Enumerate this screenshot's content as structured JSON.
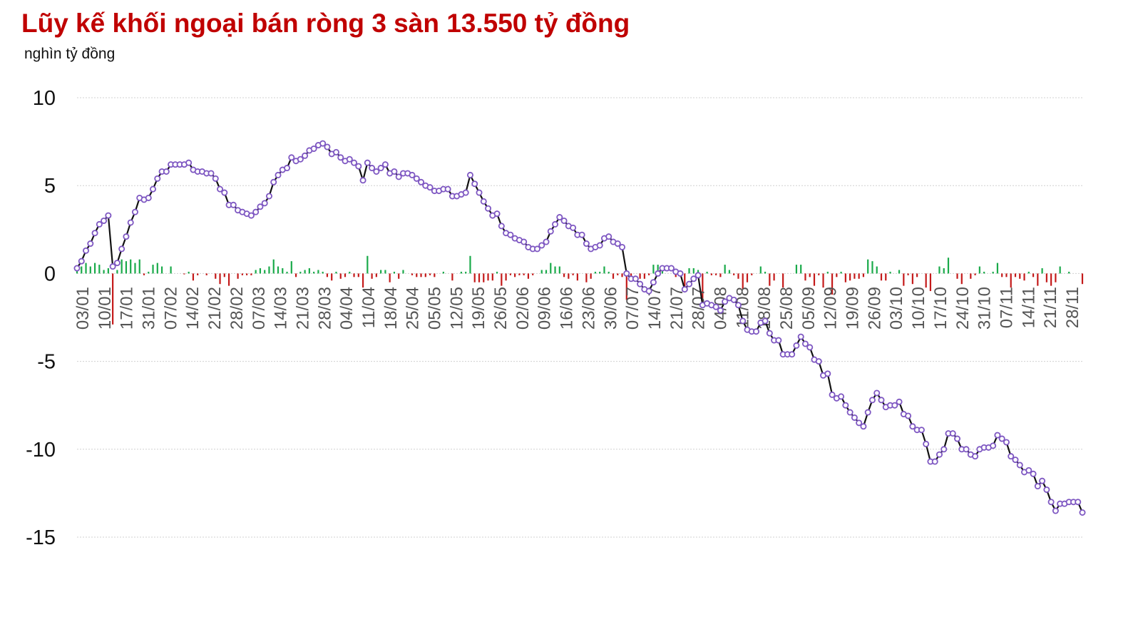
{
  "chart_data": {
    "type": "line",
    "title": "Lũy kế khối ngoại bán ròng 3 sàn 13.550 tỷ đồng",
    "ylabel": "nghìn tỷ đồng",
    "xlabel": "",
    "ylim": [
      -15,
      10
    ],
    "yticks": [
      10,
      5,
      0,
      -5,
      -10,
      -15
    ],
    "grid": true,
    "legend": "none",
    "colors": {
      "title": "#c00000",
      "line": "#111111",
      "marker_fill": "#ffffff",
      "marker_stroke": "#7e57c2",
      "bar_positive": "#1aaa4a",
      "bar_negative": "#c41a1a",
      "grid": "#d0d0d0"
    },
    "x_tick_labels": [
      "03/01",
      "10/01",
      "17/01",
      "31/01",
      "07/02",
      "14/02",
      "21/02",
      "28/02",
      "07/03",
      "14/03",
      "21/03",
      "28/03",
      "04/04",
      "11/04",
      "18/04",
      "25/04",
      "05/05",
      "12/05",
      "19/05",
      "26/05",
      "02/06",
      "09/06",
      "16/06",
      "23/06",
      "30/06",
      "07/07",
      "14/07",
      "21/07",
      "28/07",
      "04/08",
      "11/08",
      "18/08",
      "25/08",
      "05/09",
      "12/09",
      "19/09",
      "26/09",
      "03/10",
      "10/10",
      "17/10",
      "24/10",
      "31/10",
      "07/11",
      "14/11",
      "21/11",
      "28/11"
    ],
    "series": [
      {
        "kind": "line",
        "values": [
          0.3,
          0.7,
          1.3,
          1.7,
          2.3,
          2.8,
          3.0,
          3.3,
          0.4,
          0.6,
          1.4,
          2.1,
          2.9,
          3.5,
          4.3,
          4.2,
          4.3,
          4.8,
          5.4,
          5.8,
          5.8,
          6.2,
          6.2,
          6.2,
          6.2,
          6.3,
          5.9,
          5.8,
          5.8,
          5.7,
          5.7,
          5.4,
          4.8,
          4.6,
          3.9,
          3.9,
          3.6,
          3.5,
          3.4,
          3.3,
          3.5,
          3.8,
          4.0,
          4.4,
          5.2,
          5.6,
          5.9,
          6.0,
          6.6,
          6.4,
          6.5,
          6.7,
          7.0,
          7.1,
          7.3,
          7.4,
          7.2,
          6.8,
          6.9,
          6.6,
          6.4,
          6.5,
          6.3,
          6.1,
          5.3,
          6.3,
          6.0,
          5.8,
          6.0,
          6.2,
          5.7,
          5.8,
          5.5,
          5.7,
          5.7,
          5.6,
          5.4,
          5.2,
          5.0,
          4.9,
          4.7,
          4.7,
          4.8,
          4.8,
          4.4,
          4.4,
          4.5,
          4.6,
          5.6,
          5.1,
          4.6,
          4.1,
          3.7,
          3.3,
          3.4,
          2.7,
          2.3,
          2.2,
          2.0,
          1.9,
          1.8,
          1.5,
          1.4,
          1.4,
          1.6,
          1.8,
          2.4,
          2.8,
          3.2,
          3.0,
          2.7,
          2.6,
          2.2,
          2.2,
          1.7,
          1.4,
          1.5,
          1.6,
          2.0,
          2.1,
          1.8,
          1.7,
          1.5,
          0.0,
          -0.3,
          -0.3,
          -0.6,
          -0.9,
          -1.0,
          -0.5,
          0.0,
          0.3,
          0.3,
          0.3,
          0.1,
          0.0,
          -0.9,
          -0.6,
          -0.3,
          -0.1,
          -1.8,
          -1.7,
          -1.8,
          -1.9,
          -2.1,
          -1.6,
          -1.4,
          -1.5,
          -1.8,
          -2.7,
          -3.2,
          -3.3,
          -3.3,
          -2.8,
          -2.7,
          -3.4,
          -3.8,
          -3.8,
          -4.6,
          -4.6,
          -4.6,
          -4.1,
          -3.6,
          -4.0,
          -4.2,
          -4.9,
          -5.0,
          -5.8,
          -5.7,
          -6.9,
          -7.1,
          -7.0,
          -7.5,
          -7.9,
          -8.2,
          -8.5,
          -8.7,
          -7.9,
          -7.2,
          -6.8,
          -7.2,
          -7.6,
          -7.5,
          -7.5,
          -7.3,
          -8.0,
          -8.1,
          -8.7,
          -8.9,
          -8.9,
          -9.7,
          -10.7,
          -10.7,
          -10.3,
          -10.0,
          -9.1,
          -9.1,
          -9.4,
          -10.0,
          -10.0,
          -10.3,
          -10.4,
          -10.0,
          -9.9,
          -9.9,
          -9.8,
          -9.2,
          -9.4,
          -9.6,
          -10.4,
          -10.6,
          -10.9,
          -11.3,
          -11.2,
          -11.4,
          -12.1,
          -11.8,
          -12.3,
          -13.0,
          -13.5,
          -13.1,
          -13.1,
          -13.0,
          -13.0,
          -13.0,
          -13.6
        ]
      },
      {
        "kind": "bar",
        "values": [
          0.3,
          0.4,
          0.6,
          0.4,
          0.6,
          0.5,
          0.2,
          0.3,
          -2.9,
          0.2,
          0.8,
          0.7,
          0.8,
          0.6,
          0.8,
          -0.1,
          0.1,
          0.5,
          0.6,
          0.4,
          0.0,
          0.4,
          0.0,
          0.0,
          -0.05,
          0.1,
          -0.4,
          -0.1,
          0.0,
          -0.1,
          0.0,
          -0.3,
          -0.6,
          -0.2,
          -0.7,
          0.0,
          -0.3,
          -0.1,
          -0.1,
          -0.1,
          0.2,
          0.3,
          0.2,
          0.4,
          0.8,
          0.4,
          0.3,
          0.1,
          0.7,
          -0.2,
          0.1,
          0.2,
          0.3,
          0.1,
          0.2,
          0.1,
          -0.2,
          -0.4,
          0.1,
          -0.3,
          -0.2,
          0.1,
          -0.2,
          -0.2,
          -0.8,
          1.0,
          -0.3,
          -0.2,
          0.2,
          0.2,
          -0.5,
          0.1,
          -0.3,
          0.2,
          0.0,
          -0.1,
          -0.2,
          -0.2,
          -0.2,
          -0.1,
          -0.2,
          0.0,
          0.1,
          0.0,
          -0.4,
          0.0,
          0.1,
          0.1,
          1.0,
          -0.5,
          -0.5,
          -0.5,
          -0.4,
          -0.4,
          0.1,
          -0.7,
          -0.4,
          -0.1,
          -0.2,
          -0.1,
          -0.1,
          -0.3,
          -0.1,
          0.0,
          0.2,
          0.2,
          0.6,
          0.4,
          0.4,
          -0.2,
          -0.3,
          -0.1,
          -0.4,
          0.0,
          -0.5,
          -0.3,
          0.1,
          0.1,
          0.4,
          0.1,
          -0.3,
          -0.1,
          -0.2,
          -1.5,
          -0.3,
          0.0,
          -0.3,
          -0.3,
          -0.1,
          0.5,
          0.5,
          0.3,
          0.0,
          0.0,
          -0.2,
          -0.1,
          -0.9,
          0.3,
          0.3,
          0.2,
          -1.7,
          0.1,
          -0.1,
          -0.1,
          -0.2,
          0.5,
          0.2,
          -0.1,
          -0.3,
          -0.9,
          -0.5,
          -0.1,
          0.0,
          0.4,
          0.1,
          -0.7,
          -0.4,
          0.0,
          -0.8,
          0.0,
          0.0,
          0.5,
          0.5,
          -0.4,
          -0.2,
          -0.7,
          -0.1,
          -0.8,
          0.1,
          -1.2,
          -0.2,
          0.1,
          -0.5,
          -0.4,
          -0.3,
          -0.3,
          -0.2,
          0.8,
          0.7,
          0.4,
          -0.4,
          -0.4,
          0.1,
          0.0,
          0.2,
          -0.7,
          -0.1,
          -0.6,
          -0.2,
          0.0,
          -0.8,
          -1.0,
          0.0,
          0.4,
          0.3,
          0.9,
          0.0,
          -0.3,
          -0.6,
          0.0,
          -0.3,
          -0.1,
          0.4,
          0.1,
          0.0,
          0.1,
          0.6,
          -0.2,
          -0.2,
          -0.8,
          -0.2,
          -0.3,
          -0.4,
          0.1,
          -0.2,
          -0.7,
          0.3,
          -0.5,
          -0.7,
          -0.5,
          0.4,
          0.0,
          0.1,
          0.0,
          0.0,
          -0.6
        ]
      }
    ]
  }
}
